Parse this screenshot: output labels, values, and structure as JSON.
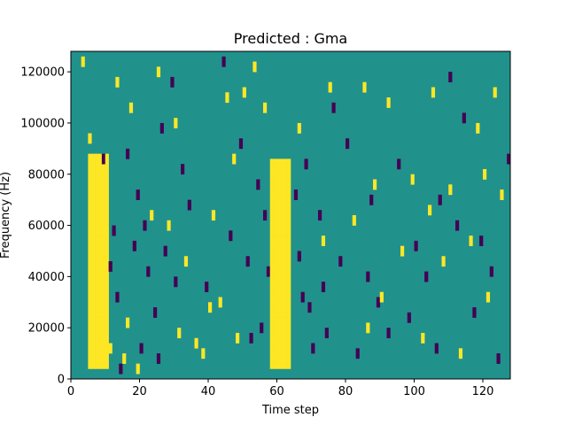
{
  "chart_data": {
    "type": "heatmap",
    "title": "Predicted : Gma",
    "xlabel": "Time step",
    "ylabel": "Frequency (Hz)",
    "xlim": [
      0,
      128
    ],
    "ylim": [
      0,
      128000
    ],
    "xticks": [
      0,
      20,
      40,
      60,
      80,
      100,
      120
    ],
    "yticks": [
      0,
      20000,
      40000,
      60000,
      80000,
      100000,
      120000
    ],
    "grid": false,
    "colormap": {
      "low": "#440154",
      "mid": "#21918c",
      "high": "#fde725"
    },
    "cell_values": {
      "low": -1,
      "mid": 0,
      "high": 1
    },
    "n_freq_bins": 64,
    "n_time_steps": 128,
    "dominant_high_bands": [
      {
        "x_range": [
          5,
          11
        ],
        "y_range": [
          4000,
          88000
        ]
      },
      {
        "x_range": [
          58,
          64
        ],
        "y_range": [
          4000,
          86000
        ]
      }
    ],
    "sparse_high_cells": [
      [
        3,
        122000
      ],
      [
        5,
        92000
      ],
      [
        6,
        60000
      ],
      [
        7,
        16000
      ],
      [
        9,
        76000
      ],
      [
        11,
        10000
      ],
      [
        13,
        114000
      ],
      [
        15,
        6000
      ],
      [
        16,
        20000
      ],
      [
        17,
        104000
      ],
      [
        19,
        2000
      ],
      [
        23,
        62000
      ],
      [
        25,
        118000
      ],
      [
        28,
        58000
      ],
      [
        30,
        98000
      ],
      [
        31,
        16000
      ],
      [
        33,
        44000
      ],
      [
        36,
        12000
      ],
      [
        38,
        8000
      ],
      [
        40,
        26000
      ],
      [
        41,
        62000
      ],
      [
        43,
        28000
      ],
      [
        45,
        108000
      ],
      [
        47,
        84000
      ],
      [
        48,
        14000
      ],
      [
        50,
        110000
      ],
      [
        53,
        120000
      ],
      [
        56,
        104000
      ],
      [
        66,
        96000
      ],
      [
        73,
        52000
      ],
      [
        75,
        112000
      ],
      [
        82,
        60000
      ],
      [
        85,
        112000
      ],
      [
        86,
        18000
      ],
      [
        88,
        74000
      ],
      [
        90,
        30000
      ],
      [
        92,
        106000
      ],
      [
        96,
        48000
      ],
      [
        99,
        76000
      ],
      [
        102,
        14000
      ],
      [
        104,
        64000
      ],
      [
        105,
        110000
      ],
      [
        108,
        44000
      ],
      [
        110,
        72000
      ],
      [
        113,
        8000
      ],
      [
        116,
        52000
      ],
      [
        118,
        96000
      ],
      [
        120,
        78000
      ],
      [
        121,
        30000
      ],
      [
        123,
        110000
      ],
      [
        125,
        70000
      ]
    ],
    "sparse_low_cells": [
      [
        9,
        84000
      ],
      [
        11,
        42000
      ],
      [
        12,
        56000
      ],
      [
        13,
        30000
      ],
      [
        14,
        2000
      ],
      [
        16,
        86000
      ],
      [
        18,
        50000
      ],
      [
        19,
        70000
      ],
      [
        20,
        10000
      ],
      [
        21,
        58000
      ],
      [
        22,
        40000
      ],
      [
        24,
        24000
      ],
      [
        25,
        6000
      ],
      [
        26,
        96000
      ],
      [
        27,
        48000
      ],
      [
        29,
        114000
      ],
      [
        30,
        36000
      ],
      [
        32,
        80000
      ],
      [
        34,
        66000
      ],
      [
        39,
        34000
      ],
      [
        44,
        122000
      ],
      [
        46,
        54000
      ],
      [
        49,
        90000
      ],
      [
        51,
        44000
      ],
      [
        52,
        14000
      ],
      [
        54,
        74000
      ],
      [
        55,
        18000
      ],
      [
        56,
        62000
      ],
      [
        57,
        40000
      ],
      [
        65,
        70000
      ],
      [
        66,
        46000
      ],
      [
        67,
        30000
      ],
      [
        68,
        82000
      ],
      [
        69,
        26000
      ],
      [
        70,
        10000
      ],
      [
        72,
        62000
      ],
      [
        73,
        34000
      ],
      [
        74,
        16000
      ],
      [
        76,
        104000
      ],
      [
        78,
        44000
      ],
      [
        80,
        90000
      ],
      [
        83,
        8000
      ],
      [
        86,
        38000
      ],
      [
        87,
        68000
      ],
      [
        89,
        28000
      ],
      [
        92,
        16000
      ],
      [
        95,
        82000
      ],
      [
        98,
        22000
      ],
      [
        100,
        50000
      ],
      [
        103,
        38000
      ],
      [
        106,
        10000
      ],
      [
        107,
        68000
      ],
      [
        110,
        116000
      ],
      [
        112,
        58000
      ],
      [
        114,
        100000
      ],
      [
        117,
        24000
      ],
      [
        119,
        52000
      ],
      [
        122,
        40000
      ],
      [
        124,
        6000
      ],
      [
        127,
        84000
      ]
    ]
  }
}
